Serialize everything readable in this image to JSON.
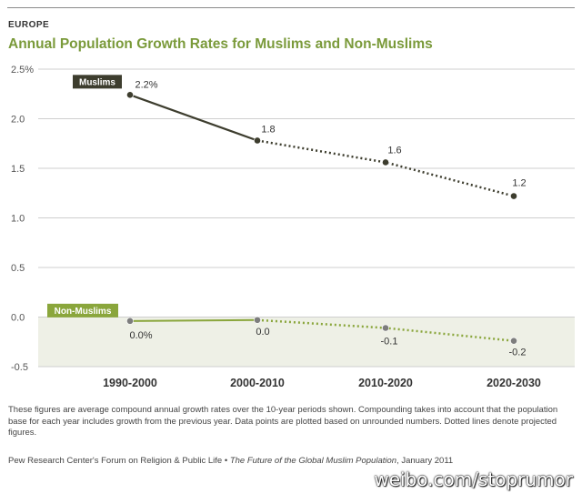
{
  "header": {
    "region": "EUROPE",
    "title": "Annual Population Growth Rates for Muslims and Non-Muslims"
  },
  "chart_data": {
    "type": "line",
    "title": "Annual Population Growth Rates for Muslims and Non-Muslims",
    "xlabel": "",
    "ylabel": "",
    "categories": [
      "1990-2000",
      "2000-2010",
      "2010-2020",
      "2020-2030"
    ],
    "y_ticks": [
      "2.5%",
      "2.0",
      "1.5",
      "1.0",
      "0.5",
      "0.0",
      "-0.5"
    ],
    "y_tick_values": [
      2.5,
      2.0,
      1.5,
      1.0,
      0.5,
      0.0,
      -0.5
    ],
    "ylim": [
      -0.5,
      2.5
    ],
    "grid": true,
    "series": [
      {
        "name": "Muslims",
        "values": [
          2.24,
          1.78,
          1.56,
          1.22
        ],
        "labels": [
          "2.2%",
          "1.8",
          "1.6",
          "1.2"
        ],
        "projected_from_index": 1,
        "color": "#3d3d2e"
      },
      {
        "name": "Non-Muslims",
        "values": [
          -0.04,
          -0.03,
          -0.11,
          -0.24
        ],
        "labels": [
          "0.0%",
          "0.0",
          "-0.1",
          "-0.2"
        ],
        "projected_from_index": 1,
        "color": "#8aa63c"
      }
    ],
    "colors": {
      "negative_band": "#eef0e6",
      "grid": "#cfcfcf",
      "dots": "#7d7d7d"
    }
  },
  "notes": {
    "footnote": "These figures are average compound annual growth rates over the 10-year periods shown. Compounding takes into account that the population base for each year includes growth from the previous year. Data points are plotted based on unrounded numbers. Dotted lines denote projected figures.",
    "source_prefix": "Pew Research Center's Forum on Religion & Public Life • ",
    "source_title": "The Future of the Global Muslim Population",
    "source_suffix": ", January 2011"
  },
  "watermark": "weibo.com/stoprumor"
}
